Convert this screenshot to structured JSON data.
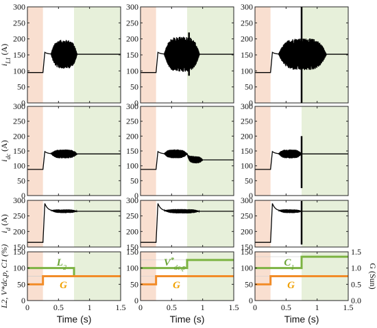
{
  "chart_data": {
    "type": "line",
    "layout": "4 rows x 3 columns",
    "shared_x": {
      "label": "Time (s)",
      "range": [
        0,
        1.5
      ],
      "ticks": [
        "0",
        "0.5",
        "1",
        "1.5"
      ]
    },
    "shading": {
      "first_interval": [
        0,
        0.25
      ],
      "first_color": "#f9dfd0",
      "second_interval": [
        0.75,
        1.5
      ],
      "second_color": "#e7f0da"
    },
    "rows": [
      {
        "ylabel": "iL1 (A)",
        "ylabel_var": "i",
        "ylabel_sub": "L1",
        "ylabel_unit": " (A)",
        "ylim": [
          0,
          300
        ],
        "yticks": [
          "0",
          "50",
          "100",
          "150",
          "200",
          "250",
          "300"
        ],
        "panels": [
          {
            "baseline": 95,
            "step_time": 0.25,
            "overshoot": 158,
            "settle": 152,
            "osc": [
              {
                "t0": 0.38,
                "t1": 0.8,
                "amp": 45
              }
            ],
            "spikes": []
          },
          {
            "baseline": 95,
            "step_time": 0.25,
            "overshoot": 158,
            "settle": 152,
            "osc": [
              {
                "t0": 0.38,
                "t1": 0.95,
                "amp": 55
              }
            ],
            "spikes": [
              {
                "t": 0.78,
                "hi": 220,
                "lo": 85
              }
            ]
          },
          {
            "baseline": 95,
            "step_time": 0.25,
            "overshoot": 158,
            "settle": 152,
            "osc": [
              {
                "t0": 0.38,
                "t1": 1.15,
                "amp": 50
              }
            ],
            "spikes": [
              {
                "t": 0.75,
                "hi": 300,
                "lo": 0
              }
            ]
          }
        ]
      },
      {
        "ylabel": "idc (A)",
        "ylabel_var": "i",
        "ylabel_sub": "dc",
        "ylabel_unit": " (A)",
        "ylim": [
          0,
          300
        ],
        "yticks": [
          "0",
          "50",
          "100",
          "150",
          "200",
          "250",
          "300"
        ],
        "panels": [
          {
            "baseline": 88,
            "step_time": 0.25,
            "overshoot": 148,
            "settle": 140,
            "osc": [
              {
                "t0": 0.38,
                "t1": 0.8,
                "amp": 15
              }
            ],
            "spikes": []
          },
          {
            "baseline": 88,
            "step_time": 0.25,
            "overshoot": 148,
            "settle": 140,
            "settle2": 120,
            "osc": [
              {
                "t0": 0.38,
                "t1": 0.75,
                "amp": 15
              },
              {
                "t0": 0.75,
                "t1": 1.0,
                "amp": 12
              }
            ],
            "spikes": []
          },
          {
            "baseline": 88,
            "step_time": 0.25,
            "overshoot": 148,
            "settle": 140,
            "osc": [
              {
                "t0": 0.38,
                "t1": 0.75,
                "amp": 15
              }
            ],
            "spikes": [
              {
                "t": 0.75,
                "hi": 200,
                "lo": 25
              }
            ]
          }
        ]
      },
      {
        "ylabel": "id (A)",
        "ylabel_var": "i",
        "ylabel_sub": "d",
        "ylabel_unit": " (A)",
        "ylim": [
          150,
          300
        ],
        "yticks": [
          "150",
          "200",
          "250",
          "300"
        ],
        "panels": [
          {
            "baseline": 165,
            "step_time": 0.25,
            "overshoot": 290,
            "settle": 265,
            "osc": [
              {
                "t0": 0.38,
                "t1": 0.8,
                "amp": 6
              }
            ],
            "spikes": []
          },
          {
            "baseline": 165,
            "step_time": 0.25,
            "overshoot": 290,
            "settle": 265,
            "osc": [
              {
                "t0": 0.38,
                "t1": 0.95,
                "amp": 7
              }
            ],
            "spikes": []
          },
          {
            "baseline": 165,
            "step_time": 0.25,
            "overshoot": 290,
            "settle": 265,
            "osc": [
              {
                "t0": 0.38,
                "t1": 0.75,
                "amp": 6
              }
            ],
            "spikes": [
              {
                "t": 0.75,
                "hi": 298,
                "lo": 158
              }
            ]
          }
        ]
      },
      {
        "ylabel": "L2, V*dc,p, C1 (%)",
        "ylim": [
          0,
          150
        ],
        "yticks": [
          "0",
          "50",
          "100",
          "150"
        ],
        "y2label": "G (Sun)",
        "y2lim": [
          0,
          1.5
        ],
        "y2ticks": [
          "0.0",
          "0.5",
          "1.0",
          "1.5"
        ],
        "panels": [
          {
            "green_label": "L2",
            "green_label_base": "L",
            "green_label_sub": "2",
            "green_label_sup": "",
            "green_steps": [
              [
                0,
                100
              ],
              [
                0.75,
                75
              ],
              [
                1.5,
                75
              ]
            ],
            "orange_label": "G",
            "orange_steps": [
              [
                0,
                50
              ],
              [
                0.25,
                75
              ],
              [
                1.5,
                75
              ]
            ]
          },
          {
            "green_label": "V*dc,p",
            "green_label_base": "V",
            "green_label_sub": "dc,p",
            "green_label_sup": "*",
            "green_steps": [
              [
                0,
                100
              ],
              [
                0.75,
                125
              ],
              [
                1.5,
                125
              ]
            ],
            "orange_label": "G",
            "orange_steps": [
              [
                0,
                50
              ],
              [
                0.25,
                75
              ],
              [
                1.5,
                75
              ]
            ]
          },
          {
            "green_label": "C1",
            "green_label_base": "C",
            "green_label_sub": "1",
            "green_label_sup": "",
            "green_steps": [
              [
                0,
                100
              ],
              [
                0.75,
                135
              ],
              [
                1.5,
                135
              ]
            ],
            "orange_label": "G",
            "orange_steps": [
              [
                0,
                50
              ],
              [
                0.25,
                75
              ],
              [
                1.5,
                75
              ]
            ]
          }
        ]
      }
    ],
    "colors": {
      "trace": "#000000",
      "green": "#7cb342",
      "orange": "#f28c28",
      "green_label": "#6aa335",
      "orange_label": "#f0a000"
    }
  }
}
